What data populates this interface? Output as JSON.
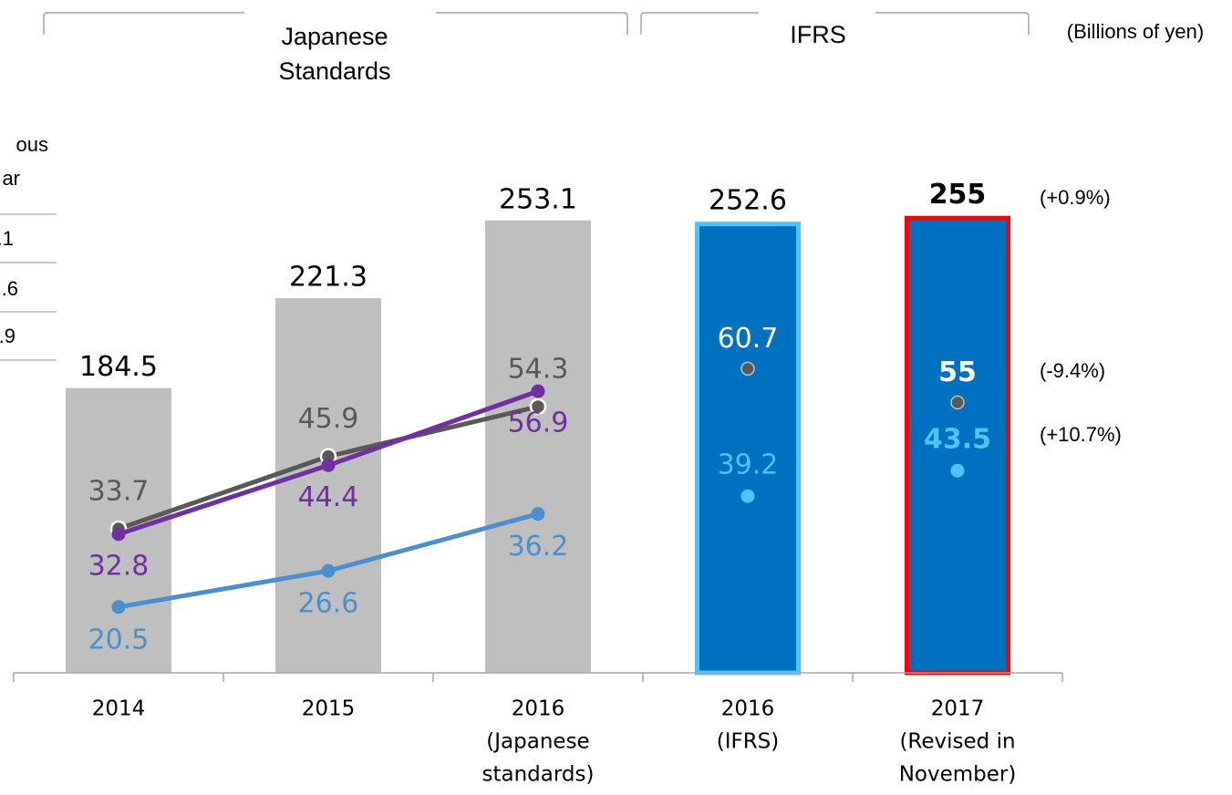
{
  "chart_data": {
    "type": "bar",
    "group_headers": [
      [
        "Japanese",
        "Standards"
      ],
      [
        "IFRS"
      ]
    ],
    "unit": "(Billions of yen)",
    "legend_fragment": {
      "header": [
        "ous",
        "ar"
      ],
      "rows": [
        ".1",
        ".6",
        ".9"
      ]
    },
    "categories": [
      [
        "2014"
      ],
      [
        "2015"
      ],
      [
        "2016",
        "(Japanese",
        "standards)"
      ],
      [
        "2016",
        "(IFRS)"
      ],
      [
        "2017",
        "(Revised in",
        "November)"
      ]
    ],
    "values": [
      184.5,
      221.3,
      253.1,
      252.6,
      255.0
    ],
    "bar_colors": [
      "#bfbfbf",
      "#bfbfbf",
      "#bfbfbf",
      "#0070c0",
      "#0070c0"
    ],
    "bar_edge_colors": [
      null,
      null,
      null,
      "#4fc3f7",
      "#ff0000"
    ],
    "emphasis_index": 4,
    "ylim": [
      68,
      306
    ],
    "y2lim": [
      9.4,
      107.5
    ],
    "series": [
      {
        "color": "#595959",
        "label_color": "#595959",
        "line": true,
        "axis": "y2",
        "values": [
          33.7,
          45.9,
          54.3,
          null,
          null
        ]
      },
      {
        "color": "#7030a0",
        "label_color": "#7030a0",
        "line": true,
        "axis": "y2",
        "values": [
          32.8,
          44.4,
          56.9,
          null,
          null
        ]
      },
      {
        "color": "#4a8fd0",
        "label_color": "#4a8fd0",
        "line": true,
        "axis": "y2",
        "values": [
          20.5,
          26.6,
          36.2,
          null,
          null
        ]
      },
      {
        "color": "#595959",
        "label_color": "#ffffff",
        "line": false,
        "axis": "y2",
        "values": [
          null,
          null,
          null,
          60.7,
          55.0
        ]
      },
      {
        "color": "#4fc3f7",
        "label_color": "#4fc3f7",
        "line": false,
        "axis": "y2",
        "values": [
          null,
          null,
          null,
          39.2,
          43.5
        ]
      }
    ],
    "change_labels": [
      "(+0.9%)",
      "(-9.4%)",
      "(+10.7%)"
    ]
  }
}
